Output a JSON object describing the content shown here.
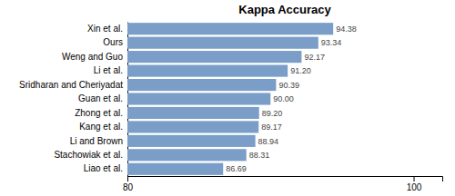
{
  "chart_data": {
    "type": "bar",
    "orientation": "horizontal",
    "title": "Kappa Accuracy",
    "categories": [
      "Liao et al.",
      "Stachowiak et al.",
      "Li and Brown",
      "Kang et al.",
      "Zhong et al.",
      "Guan et al.",
      "Sridharan and Cheriyadat",
      "Li et al.",
      "Weng and Guo",
      "Ours",
      "Xin et al."
    ],
    "values": [
      86.69,
      88.31,
      88.94,
      89.17,
      89.2,
      90.0,
      90.39,
      91.2,
      92.17,
      93.34,
      94.38
    ],
    "value_labels": [
      "86.69",
      "88.31",
      "88.94",
      "89.17",
      "89.20",
      "90.00",
      "90.39",
      "91.20",
      "92.17",
      "93.34",
      "94.38"
    ],
    "data_labels": true,
    "color": "#7A9EC8",
    "xlim": [
      80,
      102
    ],
    "xticks": [
      80,
      100
    ],
    "grid": false
  }
}
